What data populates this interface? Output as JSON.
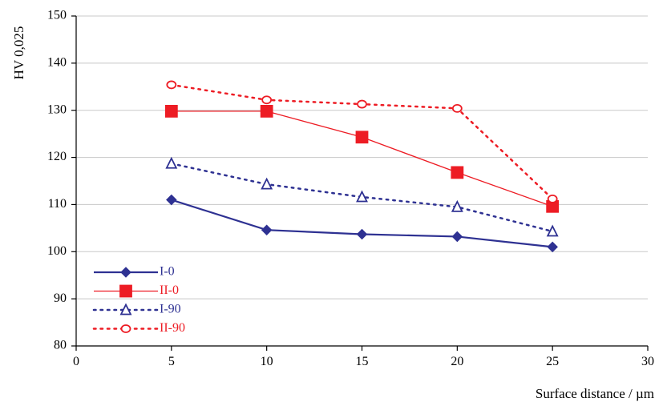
{
  "chart_data": {
    "type": "line",
    "title": "",
    "xlabel": "Surface distance / µm",
    "ylabel": "HV 0,025",
    "xlim": [
      0,
      30
    ],
    "ylim": [
      80,
      150
    ],
    "xticks": [
      0,
      5,
      10,
      15,
      20,
      25,
      30
    ],
    "yticks": [
      80,
      90,
      100,
      110,
      120,
      130,
      140,
      150
    ],
    "grid": true,
    "legend_position": "bottom-left",
    "x": [
      5,
      10,
      15,
      20,
      25
    ],
    "series": [
      {
        "name": "I-0",
        "values": [
          111.0,
          104.6,
          103.7,
          103.2,
          101.0
        ],
        "color": "#2e3192",
        "line": "solid",
        "marker": "diamond",
        "filled": true
      },
      {
        "name": "II-0",
        "values": [
          129.8,
          129.8,
          124.3,
          116.8,
          109.6
        ],
        "color": "#ed1c24",
        "line": "solid-thin",
        "marker": "square",
        "filled": true
      },
      {
        "name": "I-90",
        "values": [
          118.7,
          114.3,
          111.6,
          109.5,
          104.3
        ],
        "color": "#2e3192",
        "line": "dotted",
        "marker": "triangle",
        "filled": false
      },
      {
        "name": "II-90",
        "values": [
          135.4,
          132.2,
          131.3,
          130.4,
          111.2
        ],
        "color": "#ed1c24",
        "line": "dotted",
        "marker": "circle",
        "filled": false
      }
    ]
  }
}
